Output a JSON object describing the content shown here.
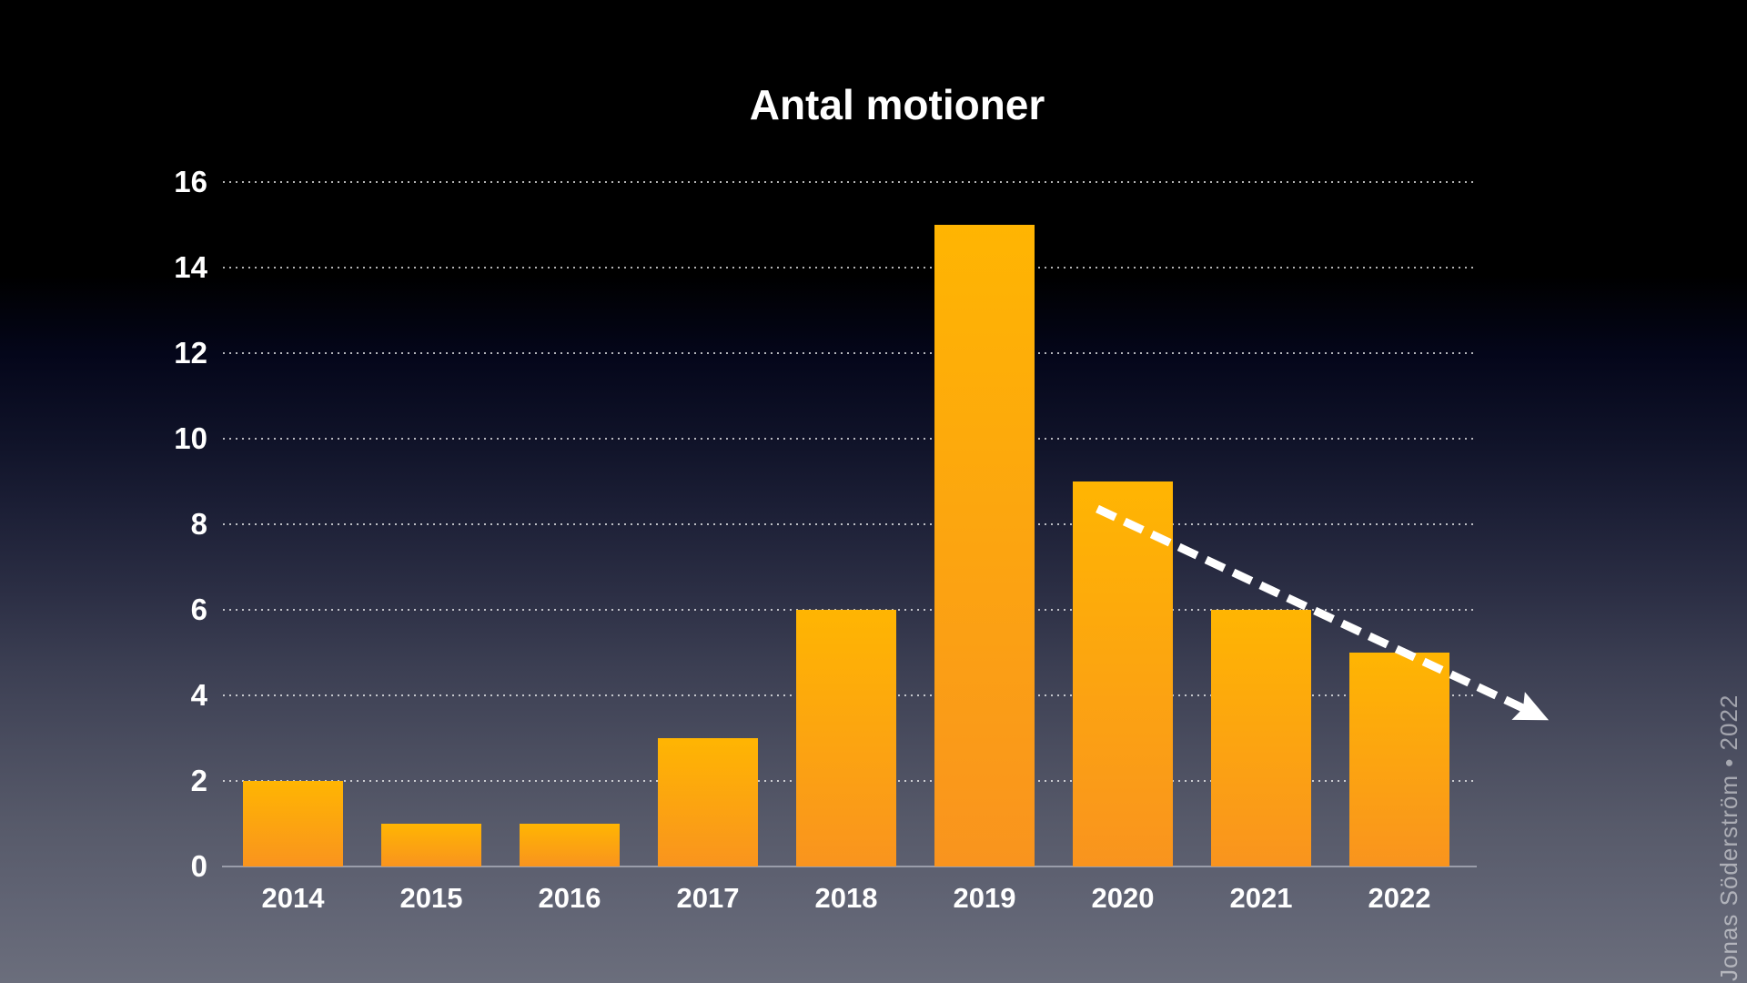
{
  "title": "Antal motioner",
  "credit": "Jonas Söderström • 2022",
  "colors": {
    "text": "#FFFFFF",
    "bar_top": "#FFB502",
    "bar_bottom": "#F9941E",
    "gridline": "#FFFFFF",
    "arrow": "#FFFFFF",
    "background_top": "#000000",
    "background_bottom": "#6B6E7C"
  },
  "chart_data": {
    "type": "bar",
    "title": "Antal motioner",
    "categories": [
      "2014",
      "2015",
      "2016",
      "2017",
      "2018",
      "2019",
      "2020",
      "2021",
      "2022"
    ],
    "values": [
      2,
      1,
      1,
      3,
      6,
      15,
      9,
      6,
      5
    ],
    "xlabel": "",
    "ylabel": "",
    "ylim": [
      0,
      16
    ],
    "yticks": [
      0,
      2,
      4,
      6,
      8,
      10,
      12,
      14,
      16
    ],
    "grid": "horizontal dotted lines",
    "legend_position": "none",
    "annotations": [
      {
        "type": "trend-arrow",
        "style": "thick white dashed line with arrowhead",
        "direction": "downward",
        "spans": "from top of 2020 bar to lower right beyond 2022"
      }
    ]
  }
}
